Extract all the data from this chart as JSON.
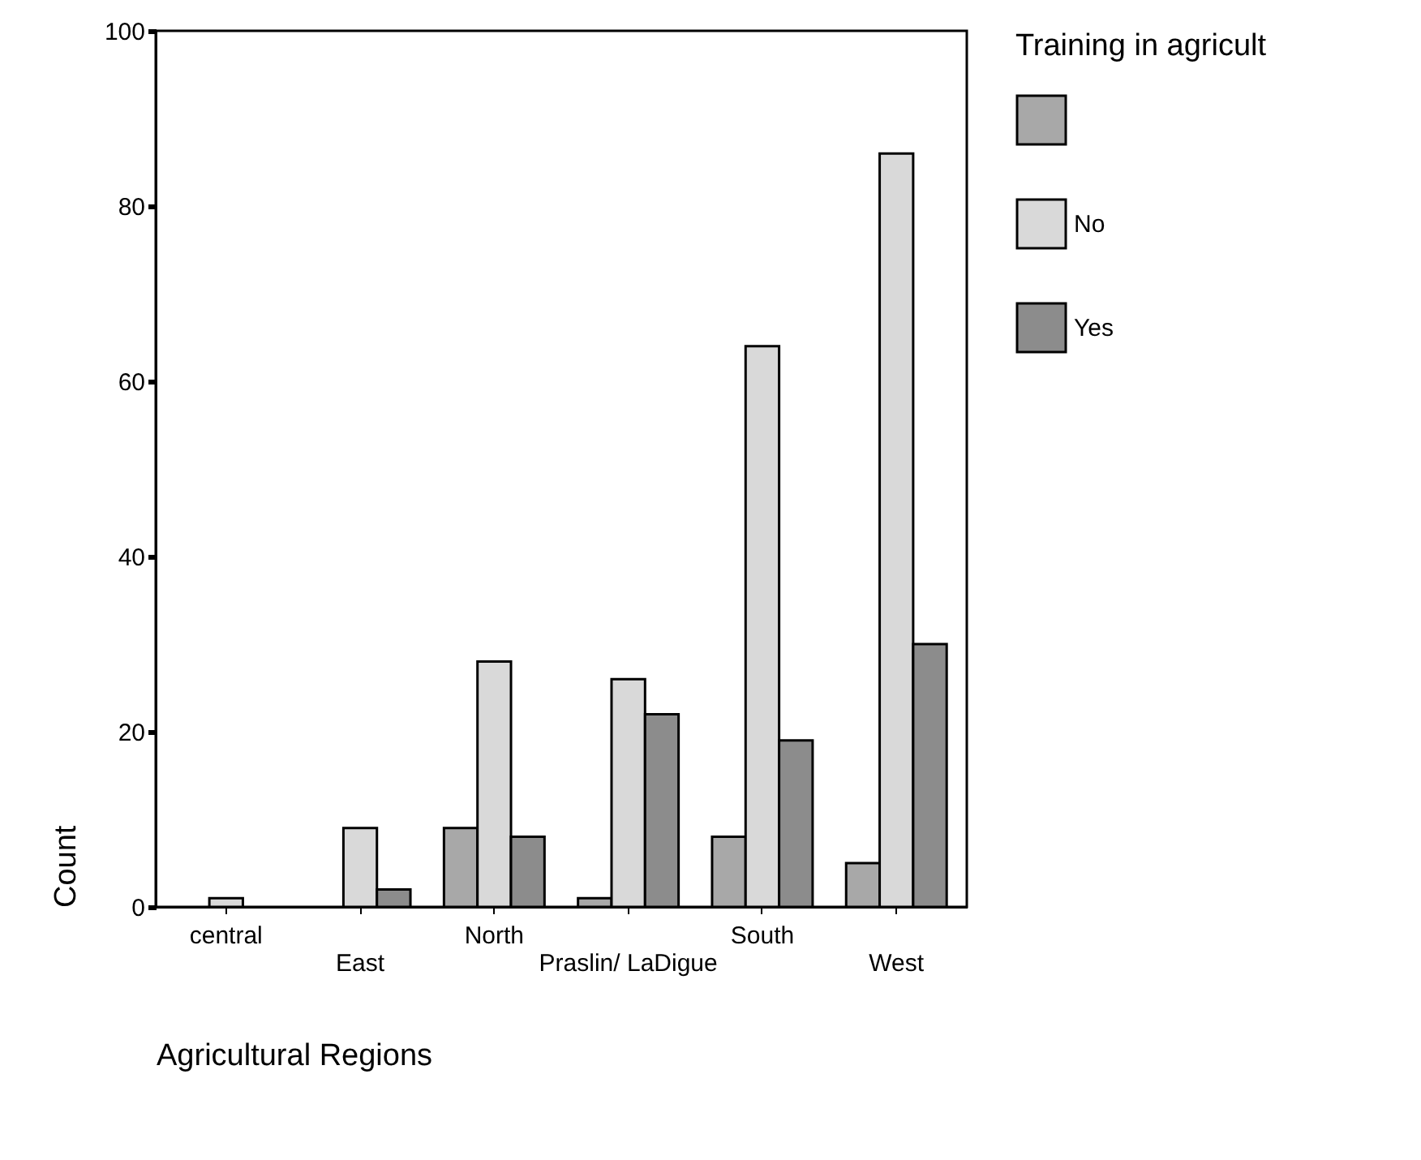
{
  "chart_data": {
    "type": "bar",
    "xlabel": "Agricultural Regions",
    "ylabel": "Count",
    "legend_title": "Training in agricult",
    "categories": [
      "central",
      "East",
      "North",
      "Praslin/ LaDigue",
      "South",
      "West"
    ],
    "series": [
      {
        "color": "#a8a8a8",
        "values": [
          0,
          0,
          9,
          1,
          8,
          5
        ]
      },
      {
        "name": "No",
        "color": "#d9d9d9",
        "values": [
          1,
          9,
          28,
          26,
          64,
          86
        ]
      },
      {
        "name": "Yes",
        "color": "#8c8c8c",
        "values": [
          0,
          2,
          8,
          22,
          19,
          30
        ]
      }
    ],
    "ylim": [
      0,
      100
    ],
    "yticks": [
      0,
      20,
      40,
      60,
      80,
      100
    ],
    "grid": false,
    "legend": "right"
  }
}
